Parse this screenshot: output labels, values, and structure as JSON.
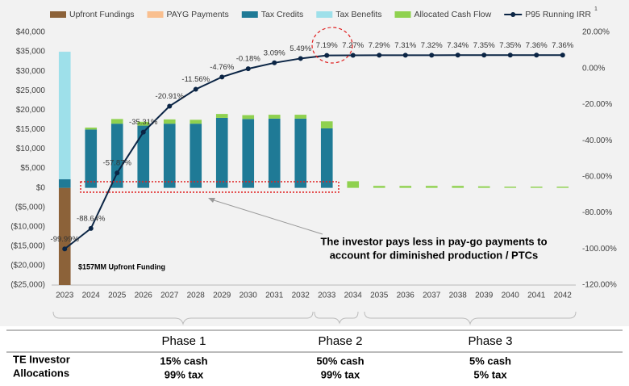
{
  "chart_data": {
    "type": "bar",
    "categories": [
      "2023",
      "2024",
      "2025",
      "2026",
      "2027",
      "2028",
      "2029",
      "2030",
      "2031",
      "2032",
      "2033",
      "2034",
      "2035",
      "2036",
      "2037",
      "2038",
      "2039",
      "2040",
      "2041",
      "2042"
    ],
    "series": [
      {
        "name": "Upfront Fundings",
        "color": "#8c6239",
        "values": [
          -25000,
          0,
          0,
          0,
          0,
          0,
          0,
          0,
          0,
          0,
          0,
          0,
          0,
          0,
          0,
          0,
          0,
          0,
          0,
          0
        ]
      },
      {
        "name": "PAYG Payments",
        "color": "#f9bf8f",
        "values": [
          0,
          0,
          0,
          0,
          0,
          0,
          0,
          0,
          0,
          0,
          0,
          0,
          0,
          0,
          0,
          0,
          0,
          0,
          0,
          0
        ]
      },
      {
        "name": "Tax Credits",
        "color": "#1f7a96",
        "values": [
          2200,
          15000,
          16500,
          16000,
          16500,
          16500,
          18000,
          17700,
          17800,
          17800,
          15300,
          0,
          0,
          0,
          0,
          0,
          0,
          0,
          0,
          0
        ]
      },
      {
        "name": "Tax Benefits",
        "color": "#9ee0ea",
        "values": [
          32800,
          0,
          0,
          0,
          0,
          0,
          0,
          0,
          0,
          0,
          0,
          0,
          0,
          0,
          0,
          0,
          0,
          0,
          0,
          0
        ]
      },
      {
        "name": "Allocated Cash Flow",
        "color": "#8fd14f",
        "values": [
          0,
          500,
          1200,
          1000,
          1100,
          1000,
          1000,
          1000,
          1000,
          1000,
          1800,
          1700,
          500,
          500,
          500,
          500,
          400,
          300,
          300,
          300
        ]
      },
      {
        "name": "P95 Running IRR",
        "type": "line",
        "axis": "y2",
        "color": "#0b2545",
        "values": [
          -99.99,
          -88.64,
          -57.87,
          -35.31,
          -20.91,
          -11.56,
          -4.76,
          -0.18,
          3.09,
          5.49,
          7.19,
          7.27,
          7.29,
          7.31,
          7.32,
          7.34,
          7.35,
          7.35,
          7.36,
          7.36
        ],
        "value_labels": [
          "-99.99%",
          "-88.64%",
          "-57.87%",
          "-35.31%",
          "-20.91%",
          "-11.56%",
          "-4.76%",
          "-0.18%",
          "3.09%",
          "5.49%",
          "7.19%",
          "7.27%",
          "7.29%",
          "7.31%",
          "7.32%",
          "7.34%",
          "7.35%",
          "7.35%",
          "7.36%",
          "7.36%"
        ]
      }
    ],
    "legend_footnote": "1",
    "ylim": [
      -25000,
      40000
    ],
    "yticks": [
      {
        "value": -25000,
        "label": "($25,000)"
      },
      {
        "value": -20000,
        "label": "($20,000)"
      },
      {
        "value": -15000,
        "label": "($15,000)"
      },
      {
        "value": -10000,
        "label": "($10,000)"
      },
      {
        "value": -5000,
        "label": "($5,000)"
      },
      {
        "value": 0,
        "label": "$0"
      },
      {
        "value": 5000,
        "label": "$5,000"
      },
      {
        "value": 10000,
        "label": "$10,000"
      },
      {
        "value": 15000,
        "label": "$15,000"
      },
      {
        "value": 20000,
        "label": "$20,000"
      },
      {
        "value": 25000,
        "label": "$25,000"
      },
      {
        "value": 30000,
        "label": "$30,000"
      },
      {
        "value": 35000,
        "label": "$35,000"
      },
      {
        "value": 40000,
        "label": "$40,000"
      }
    ],
    "y2lim": [
      -120,
      20
    ],
    "y2ticks": [
      {
        "value": -120,
        "label": "-120.00%"
      },
      {
        "value": -100,
        "label": "-100.00%"
      },
      {
        "value": -80,
        "label": "-80.00%"
      },
      {
        "value": -60,
        "label": "-60.00%"
      },
      {
        "value": -40,
        "label": "-40.00%"
      },
      {
        "value": -20,
        "label": "-20.00%"
      },
      {
        "value": 0,
        "label": "0.00%"
      },
      {
        "value": 20,
        "label": "20.00%"
      }
    ],
    "grid": false,
    "bar_annotation": "$157MM Upfront Funding",
    "annotations": [
      "The investor pays less in pay-go payments to",
      "account for diminished production / PTCs"
    ]
  },
  "table": {
    "header": [
      "Phase 1",
      "Phase 2",
      "Phase 3"
    ],
    "row_label": [
      "TE Investor",
      "Allocations"
    ],
    "rows": [
      [
        "15% cash",
        "50% cash",
        "5% cash"
      ],
      [
        "99% tax",
        "99% tax",
        "5% tax"
      ]
    ]
  }
}
